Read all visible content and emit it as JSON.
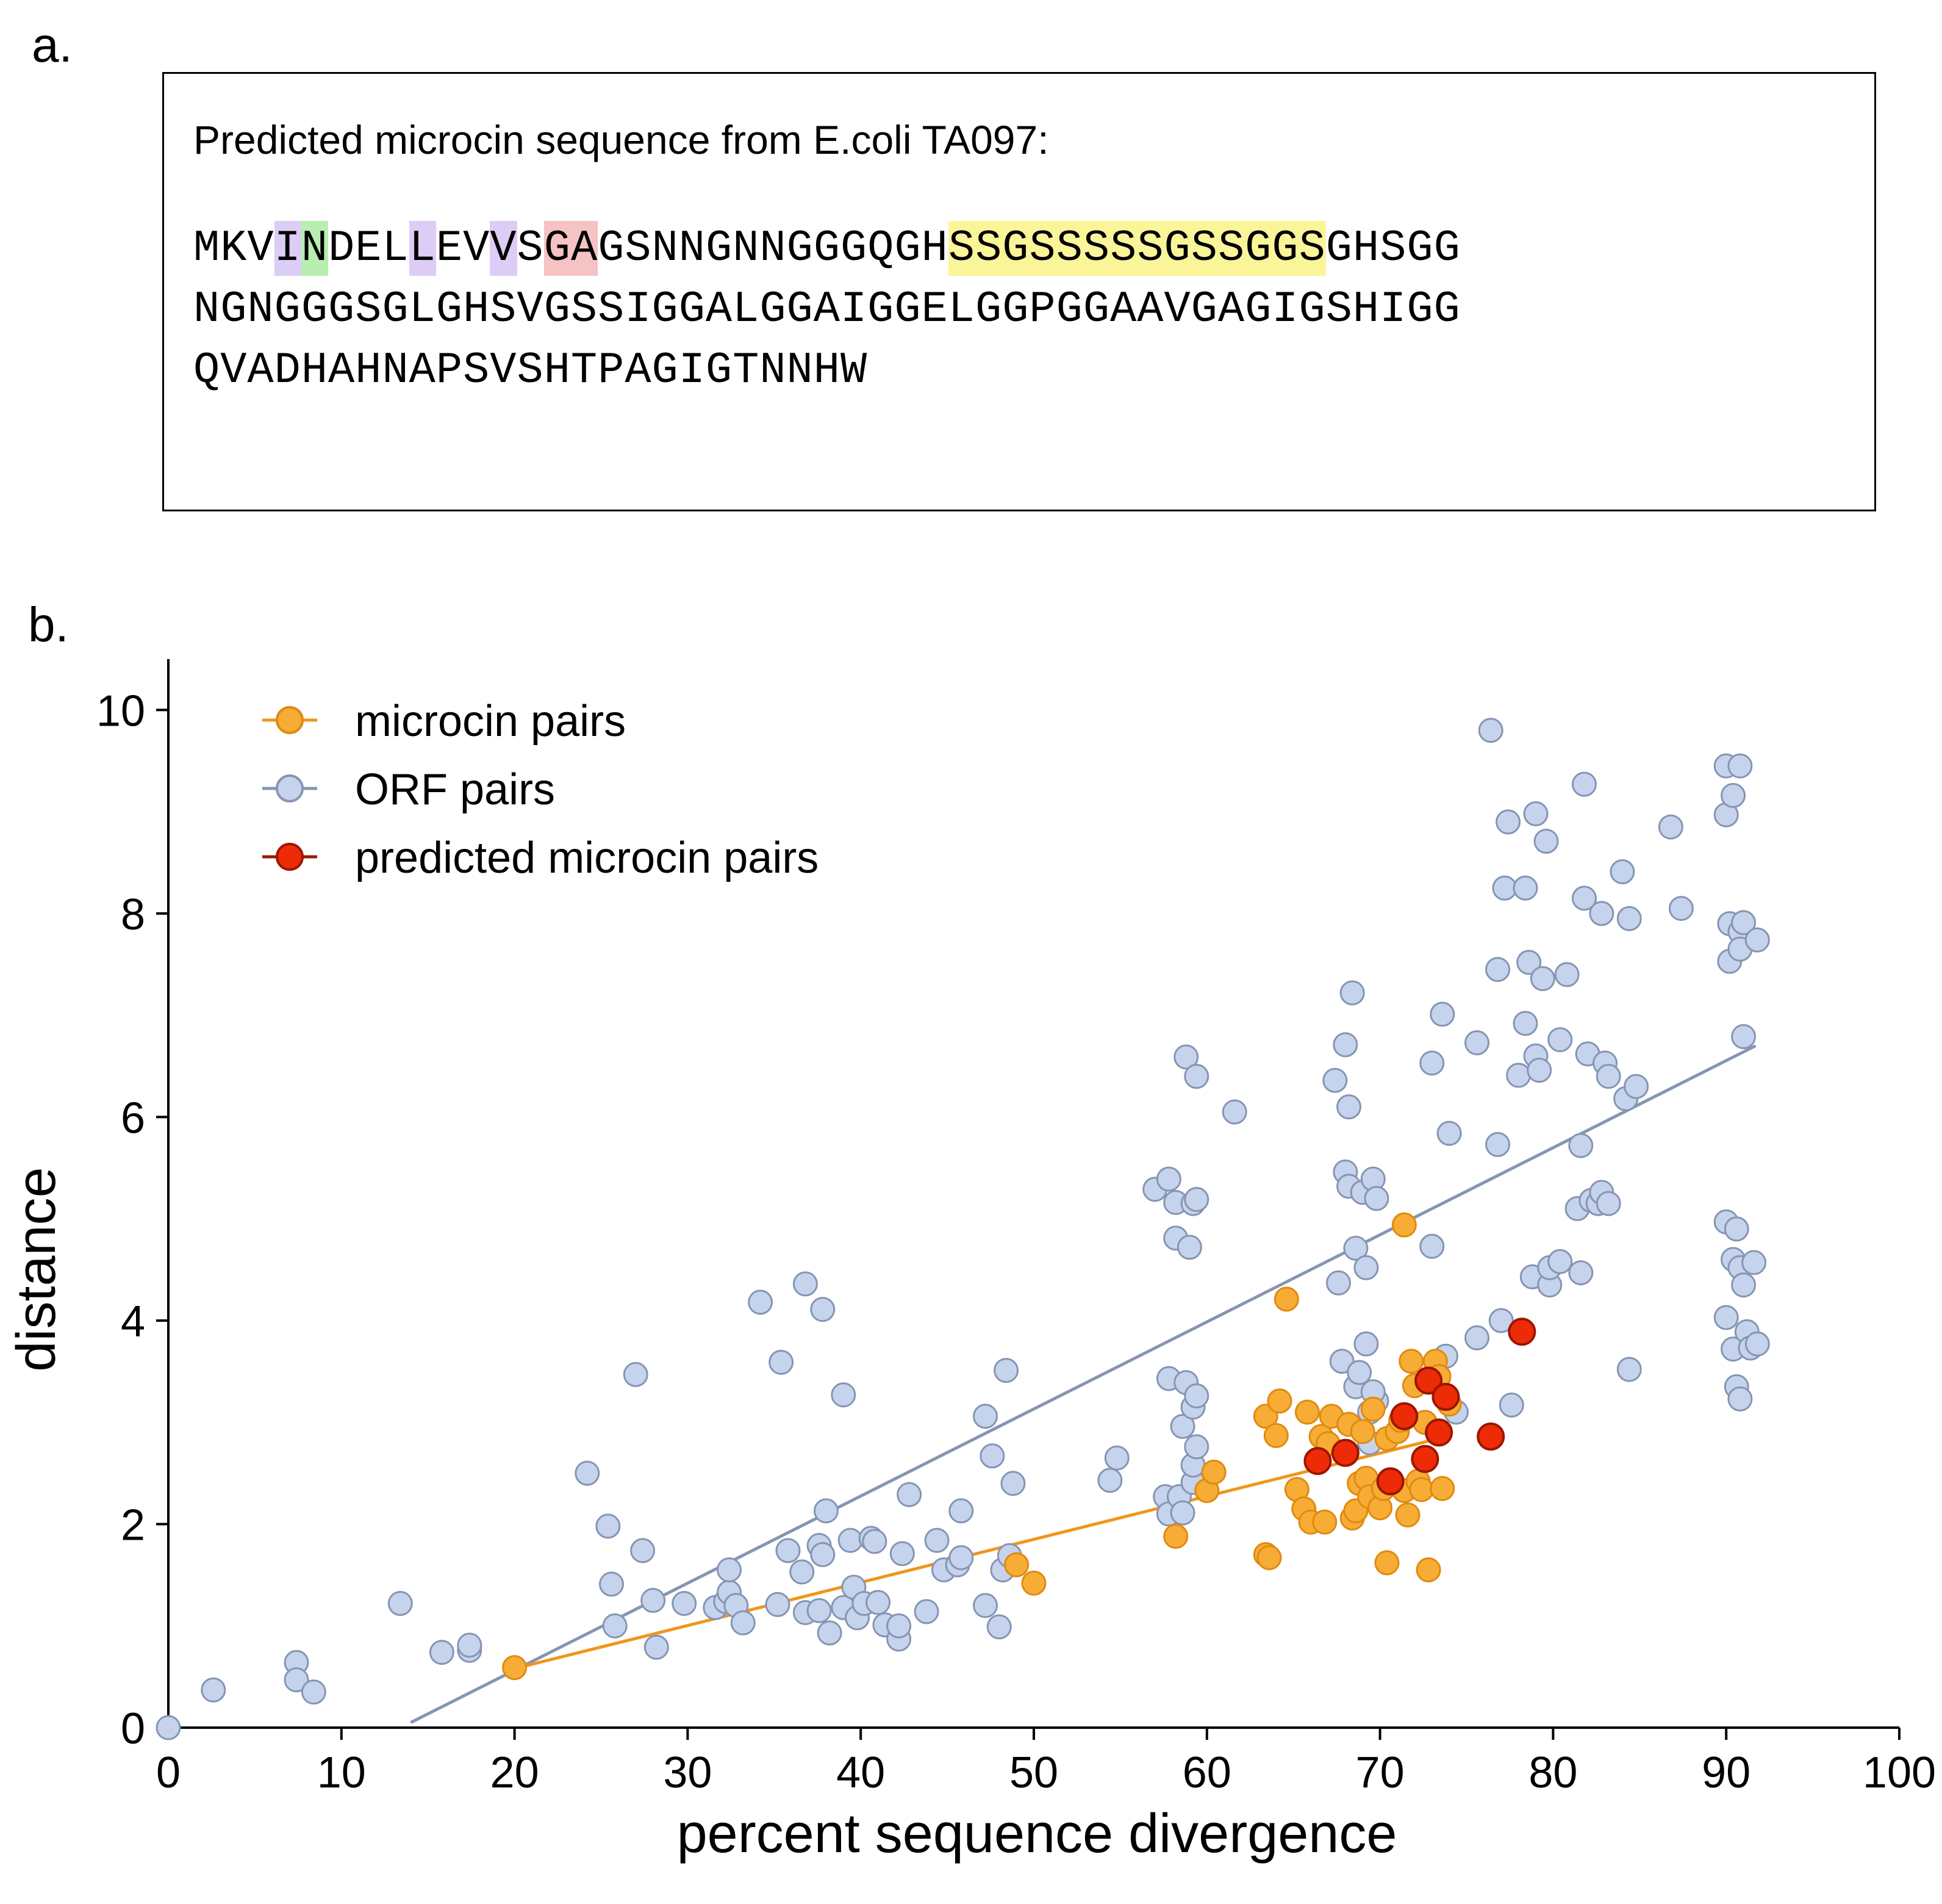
{
  "panels": {
    "a_label": "a.",
    "b_label": "b."
  },
  "sequence_panel": {
    "title": "Predicted microcin sequence from E.coli TA097:",
    "highlight_colors": {
      "purple": "#dccdf6",
      "green": "#b8eeb0",
      "red": "#f5c3c3",
      "yellow": "#fbf59a"
    },
    "lines": [
      [
        {
          "t": "MKV",
          "c": ""
        },
        {
          "t": "I",
          "c": "purple"
        },
        {
          "t": "N",
          "c": "green"
        },
        {
          "t": "DEL",
          "c": ""
        },
        {
          "t": "L",
          "c": "purple"
        },
        {
          "t": "EV",
          "c": ""
        },
        {
          "t": "V",
          "c": "purple"
        },
        {
          "t": "S",
          "c": ""
        },
        {
          "t": "GA",
          "c": "red"
        },
        {
          "t": "GSNNGNNGGGQGH",
          "c": ""
        },
        {
          "t": "SSGSSSSSGSSGGS",
          "c": "yellow"
        },
        {
          "t": "GHSGG",
          "c": ""
        }
      ],
      [
        {
          "t": "NGNGGGSGLGHSVGSSIGGALGGAIGGELGGPGGAAVGAGIGSHIGG",
          "c": ""
        }
      ],
      [
        {
          "t": "QVADHAHNAPSVSHTPAGIGTNNHW",
          "c": ""
        }
      ]
    ]
  },
  "chart_data": {
    "type": "scatter",
    "xlabel": "percent sequence divergence",
    "ylabel": "distance",
    "xlim": [
      0,
      100
    ],
    "ylim": [
      0,
      10.5
    ],
    "xticks": [
      0,
      10,
      20,
      30,
      40,
      50,
      60,
      70,
      80,
      90,
      100
    ],
    "yticks": [
      0,
      2,
      4,
      6,
      8,
      10
    ],
    "grid": false,
    "legend_placement": "top-left",
    "series": [
      {
        "name": "ORF pairs",
        "color": "#c6d3ec",
        "edge": "#8595b3",
        "fit_line": {
          "x": [
            14,
            91.7
          ],
          "y": [
            0.05,
            6.7
          ],
          "color": "#8595b3"
        },
        "points": [
          [
            0,
            0
          ],
          [
            2.6,
            0.37
          ],
          [
            7.4,
            0.64
          ],
          [
            7.4,
            0.47
          ],
          [
            8.4,
            0.35
          ],
          [
            13.4,
            1.22
          ],
          [
            15.8,
            0.74
          ],
          [
            17.4,
            0.76
          ],
          [
            17.4,
            0.81
          ],
          [
            24.2,
            2.5
          ],
          [
            25.4,
            1.98
          ],
          [
            25.6,
            1.41
          ],
          [
            25.8,
            1.0
          ],
          [
            27.0,
            3.47
          ],
          [
            27.4,
            1.74
          ],
          [
            28.0,
            1.25
          ],
          [
            28.2,
            0.79
          ],
          [
            29.8,
            1.22
          ],
          [
            31.6,
            1.18
          ],
          [
            32.2,
            1.24
          ],
          [
            32.4,
            1.33
          ],
          [
            32.4,
            1.55
          ],
          [
            32.8,
            1.2
          ],
          [
            33.2,
            1.03
          ],
          [
            34.2,
            4.18
          ],
          [
            35.2,
            1.21
          ],
          [
            35.4,
            3.59
          ],
          [
            35.8,
            1.74
          ],
          [
            36.6,
            1.53
          ],
          [
            36.8,
            4.36
          ],
          [
            36.8,
            1.13
          ],
          [
            37.6,
            1.15
          ],
          [
            37.6,
            1.79
          ],
          [
            37.8,
            4.11
          ],
          [
            37.8,
            1.7
          ],
          [
            38.0,
            2.13
          ],
          [
            38.2,
            0.93
          ],
          [
            39.0,
            3.27
          ],
          [
            39.0,
            1.18
          ],
          [
            39.4,
            1.84
          ],
          [
            39.6,
            1.38
          ],
          [
            39.8,
            1.08
          ],
          [
            40.2,
            1.22
          ],
          [
            40.6,
            1.86
          ],
          [
            40.8,
            1.83
          ],
          [
            41.0,
            1.23
          ],
          [
            41.4,
            1.01
          ],
          [
            42.2,
            0.87
          ],
          [
            42.2,
            1.0
          ],
          [
            42.4,
            1.71
          ],
          [
            42.8,
            2.29
          ],
          [
            43.8,
            1.14
          ],
          [
            44.4,
            1.84
          ],
          [
            44.8,
            1.55
          ],
          [
            45.6,
            1.6
          ],
          [
            45.8,
            1.67
          ],
          [
            45.8,
            2.13
          ],
          [
            47.2,
            3.06
          ],
          [
            47.2,
            1.2
          ],
          [
            47.6,
            2.67
          ],
          [
            48.0,
            0.99
          ],
          [
            48.2,
            1.55
          ],
          [
            48.4,
            3.51
          ],
          [
            48.8,
            2.4
          ],
          [
            48.6,
            1.69
          ],
          [
            54.4,
            2.43
          ],
          [
            54.8,
            2.65
          ],
          [
            57.0,
            5.29
          ],
          [
            57.6,
            2.27
          ],
          [
            57.8,
            5.39
          ],
          [
            57.8,
            2.1
          ],
          [
            57.8,
            3.43
          ],
          [
            58.2,
            4.81
          ],
          [
            58.2,
            5.16
          ],
          [
            58.4,
            2.27
          ],
          [
            58.6,
            2.11
          ],
          [
            58.6,
            2.96
          ],
          [
            58.8,
            6.59
          ],
          [
            58.8,
            3.39
          ],
          [
            59.0,
            4.72
          ],
          [
            59.2,
            5.15
          ],
          [
            59.2,
            2.41
          ],
          [
            59.2,
            2.58
          ],
          [
            59.2,
            3.15
          ],
          [
            59.4,
            5.19
          ],
          [
            59.4,
            6.4
          ],
          [
            59.4,
            2.76
          ],
          [
            59.4,
            3.26
          ],
          [
            61.6,
            6.05
          ],
          [
            67.4,
            6.36
          ],
          [
            67.6,
            4.37
          ],
          [
            67.8,
            3.6
          ],
          [
            68.0,
            6.71
          ],
          [
            68.0,
            5.46
          ],
          [
            68.2,
            6.1
          ],
          [
            68.2,
            5.32
          ],
          [
            68.4,
            7.22
          ],
          [
            68.6,
            4.71
          ],
          [
            68.6,
            3.35
          ],
          [
            68.8,
            3.49
          ],
          [
            69.0,
            5.26
          ],
          [
            69.2,
            4.52
          ],
          [
            69.2,
            3.77
          ],
          [
            69.4,
            3.1
          ],
          [
            69.6,
            5.39
          ],
          [
            69.8,
            5.2
          ],
          [
            69.8,
            3.21
          ],
          [
            69.4,
            2.8
          ],
          [
            69.6,
            3.3
          ],
          [
            73.0,
            6.53
          ],
          [
            73.0,
            4.73
          ],
          [
            73.6,
            7.01
          ],
          [
            73.8,
            3.65
          ],
          [
            74.0,
            5.84
          ],
          [
            74.4,
            3.1
          ],
          [
            75.6,
            6.73
          ],
          [
            75.6,
            3.83
          ],
          [
            76.4,
            9.8
          ],
          [
            76.8,
            7.45
          ],
          [
            76.8,
            5.73
          ],
          [
            77.0,
            4.0
          ],
          [
            77.2,
            8.25
          ],
          [
            77.4,
            8.9
          ],
          [
            77.6,
            3.17
          ],
          [
            78.0,
            6.41
          ],
          [
            78.4,
            6.92
          ],
          [
            78.4,
            8.25
          ],
          [
            78.6,
            7.52
          ],
          [
            78.8,
            4.43
          ],
          [
            79.0,
            6.6
          ],
          [
            79.0,
            8.98
          ],
          [
            79.2,
            6.46
          ],
          [
            79.4,
            7.36
          ],
          [
            79.6,
            8.71
          ],
          [
            79.8,
            4.35
          ],
          [
            79.8,
            4.52
          ],
          [
            80.4,
            6.76
          ],
          [
            80.4,
            4.58
          ],
          [
            80.8,
            7.4
          ],
          [
            81.4,
            5.1
          ],
          [
            81.6,
            5.72
          ],
          [
            81.6,
            4.47
          ],
          [
            81.8,
            9.27
          ],
          [
            81.8,
            8.15
          ],
          [
            82.0,
            6.62
          ],
          [
            82.2,
            5.18
          ],
          [
            82.6,
            5.15
          ],
          [
            82.8,
            8.0
          ],
          [
            82.8,
            5.26
          ],
          [
            83.0,
            6.53
          ],
          [
            83.2,
            6.4
          ],
          [
            83.2,
            5.15
          ],
          [
            84.0,
            8.41
          ],
          [
            84.2,
            6.18
          ],
          [
            84.4,
            7.95
          ],
          [
            84.4,
            3.52
          ],
          [
            84.8,
            6.3
          ],
          [
            86.8,
            8.85
          ],
          [
            87.4,
            8.05
          ],
          [
            90.0,
            9.45
          ],
          [
            90.0,
            8.97
          ],
          [
            90.0,
            4.97
          ],
          [
            90.0,
            4.03
          ],
          [
            90.2,
            7.9
          ],
          [
            90.2,
            7.53
          ],
          [
            90.4,
            9.16
          ],
          [
            90.4,
            4.6
          ],
          [
            90.4,
            3.72
          ],
          [
            90.6,
            4.9
          ],
          [
            90.6,
            3.35
          ],
          [
            90.8,
            9.45
          ],
          [
            90.8,
            7.82
          ],
          [
            90.8,
            7.65
          ],
          [
            90.8,
            4.52
          ],
          [
            90.8,
            3.23
          ],
          [
            91.0,
            7.91
          ],
          [
            91.0,
            6.79
          ],
          [
            91.0,
            4.35
          ],
          [
            91.2,
            3.89
          ],
          [
            91.4,
            3.73
          ],
          [
            91.6,
            4.57
          ],
          [
            91.8,
            7.74
          ],
          [
            91.8,
            3.77
          ]
        ]
      },
      {
        "name": "microcin pairs",
        "color": "#f7ad35",
        "edge": "#e08a10",
        "fit_line": {
          "x": [
            20,
            72.9
          ],
          "y": [
            0.58,
            2.82
          ],
          "color": "#f0961a"
        },
        "points": [
          [
            20,
            0.59
          ],
          [
            49.0,
            1.6
          ],
          [
            50.0,
            1.42
          ],
          [
            58.2,
            1.88
          ],
          [
            60.0,
            2.33
          ],
          [
            60.4,
            2.51
          ],
          [
            63.4,
            1.7
          ],
          [
            63.4,
            3.06
          ],
          [
            63.6,
            1.67
          ],
          [
            64.0,
            2.87
          ],
          [
            64.2,
            3.21
          ],
          [
            64.6,
            4.21
          ],
          [
            65.2,
            2.34
          ],
          [
            65.6,
            2.15
          ],
          [
            65.8,
            3.1
          ],
          [
            66.0,
            2.02
          ],
          [
            66.6,
            2.86
          ],
          [
            66.8,
            2.02
          ],
          [
            67.0,
            2.79
          ],
          [
            67.2,
            3.06
          ],
          [
            68.2,
            2.98
          ],
          [
            68.4,
            2.06
          ],
          [
            68.6,
            2.13
          ],
          [
            68.8,
            2.4
          ],
          [
            69.0,
            2.91
          ],
          [
            69.2,
            2.45
          ],
          [
            69.4,
            2.27
          ],
          [
            69.6,
            3.13
          ],
          [
            70.0,
            2.16
          ],
          [
            70.2,
            2.35
          ],
          [
            70.4,
            2.84
          ],
          [
            70.4,
            1.62
          ],
          [
            71.0,
            2.91
          ],
          [
            71.2,
            3.02
          ],
          [
            71.4,
            2.33
          ],
          [
            71.4,
            4.94
          ],
          [
            71.6,
            2.09
          ],
          [
            71.8,
            3.6
          ],
          [
            72.0,
            3.36
          ],
          [
            72.2,
            2.42
          ],
          [
            72.4,
            2.34
          ],
          [
            72.6,
            3.0
          ],
          [
            72.8,
            1.55
          ],
          [
            73.2,
            3.6
          ],
          [
            73.4,
            3.45
          ],
          [
            73.6,
            2.35
          ],
          [
            74.0,
            3.18
          ]
        ]
      },
      {
        "name": "predicted microcin pairs",
        "color": "#ee2b07",
        "edge": "#9c1600",
        "points": [
          [
            66.4,
            2.62
          ],
          [
            68.0,
            2.7
          ],
          [
            70.6,
            2.42
          ],
          [
            71.4,
            3.06
          ],
          [
            72.6,
            2.64
          ],
          [
            72.8,
            3.41
          ],
          [
            73.4,
            2.9
          ],
          [
            73.8,
            3.25
          ],
          [
            76.4,
            2.86
          ],
          [
            78.2,
            3.89
          ]
        ]
      }
    ],
    "legend_order": [
      "microcin pairs",
      "ORF pairs",
      "predicted microcin pairs"
    ]
  }
}
